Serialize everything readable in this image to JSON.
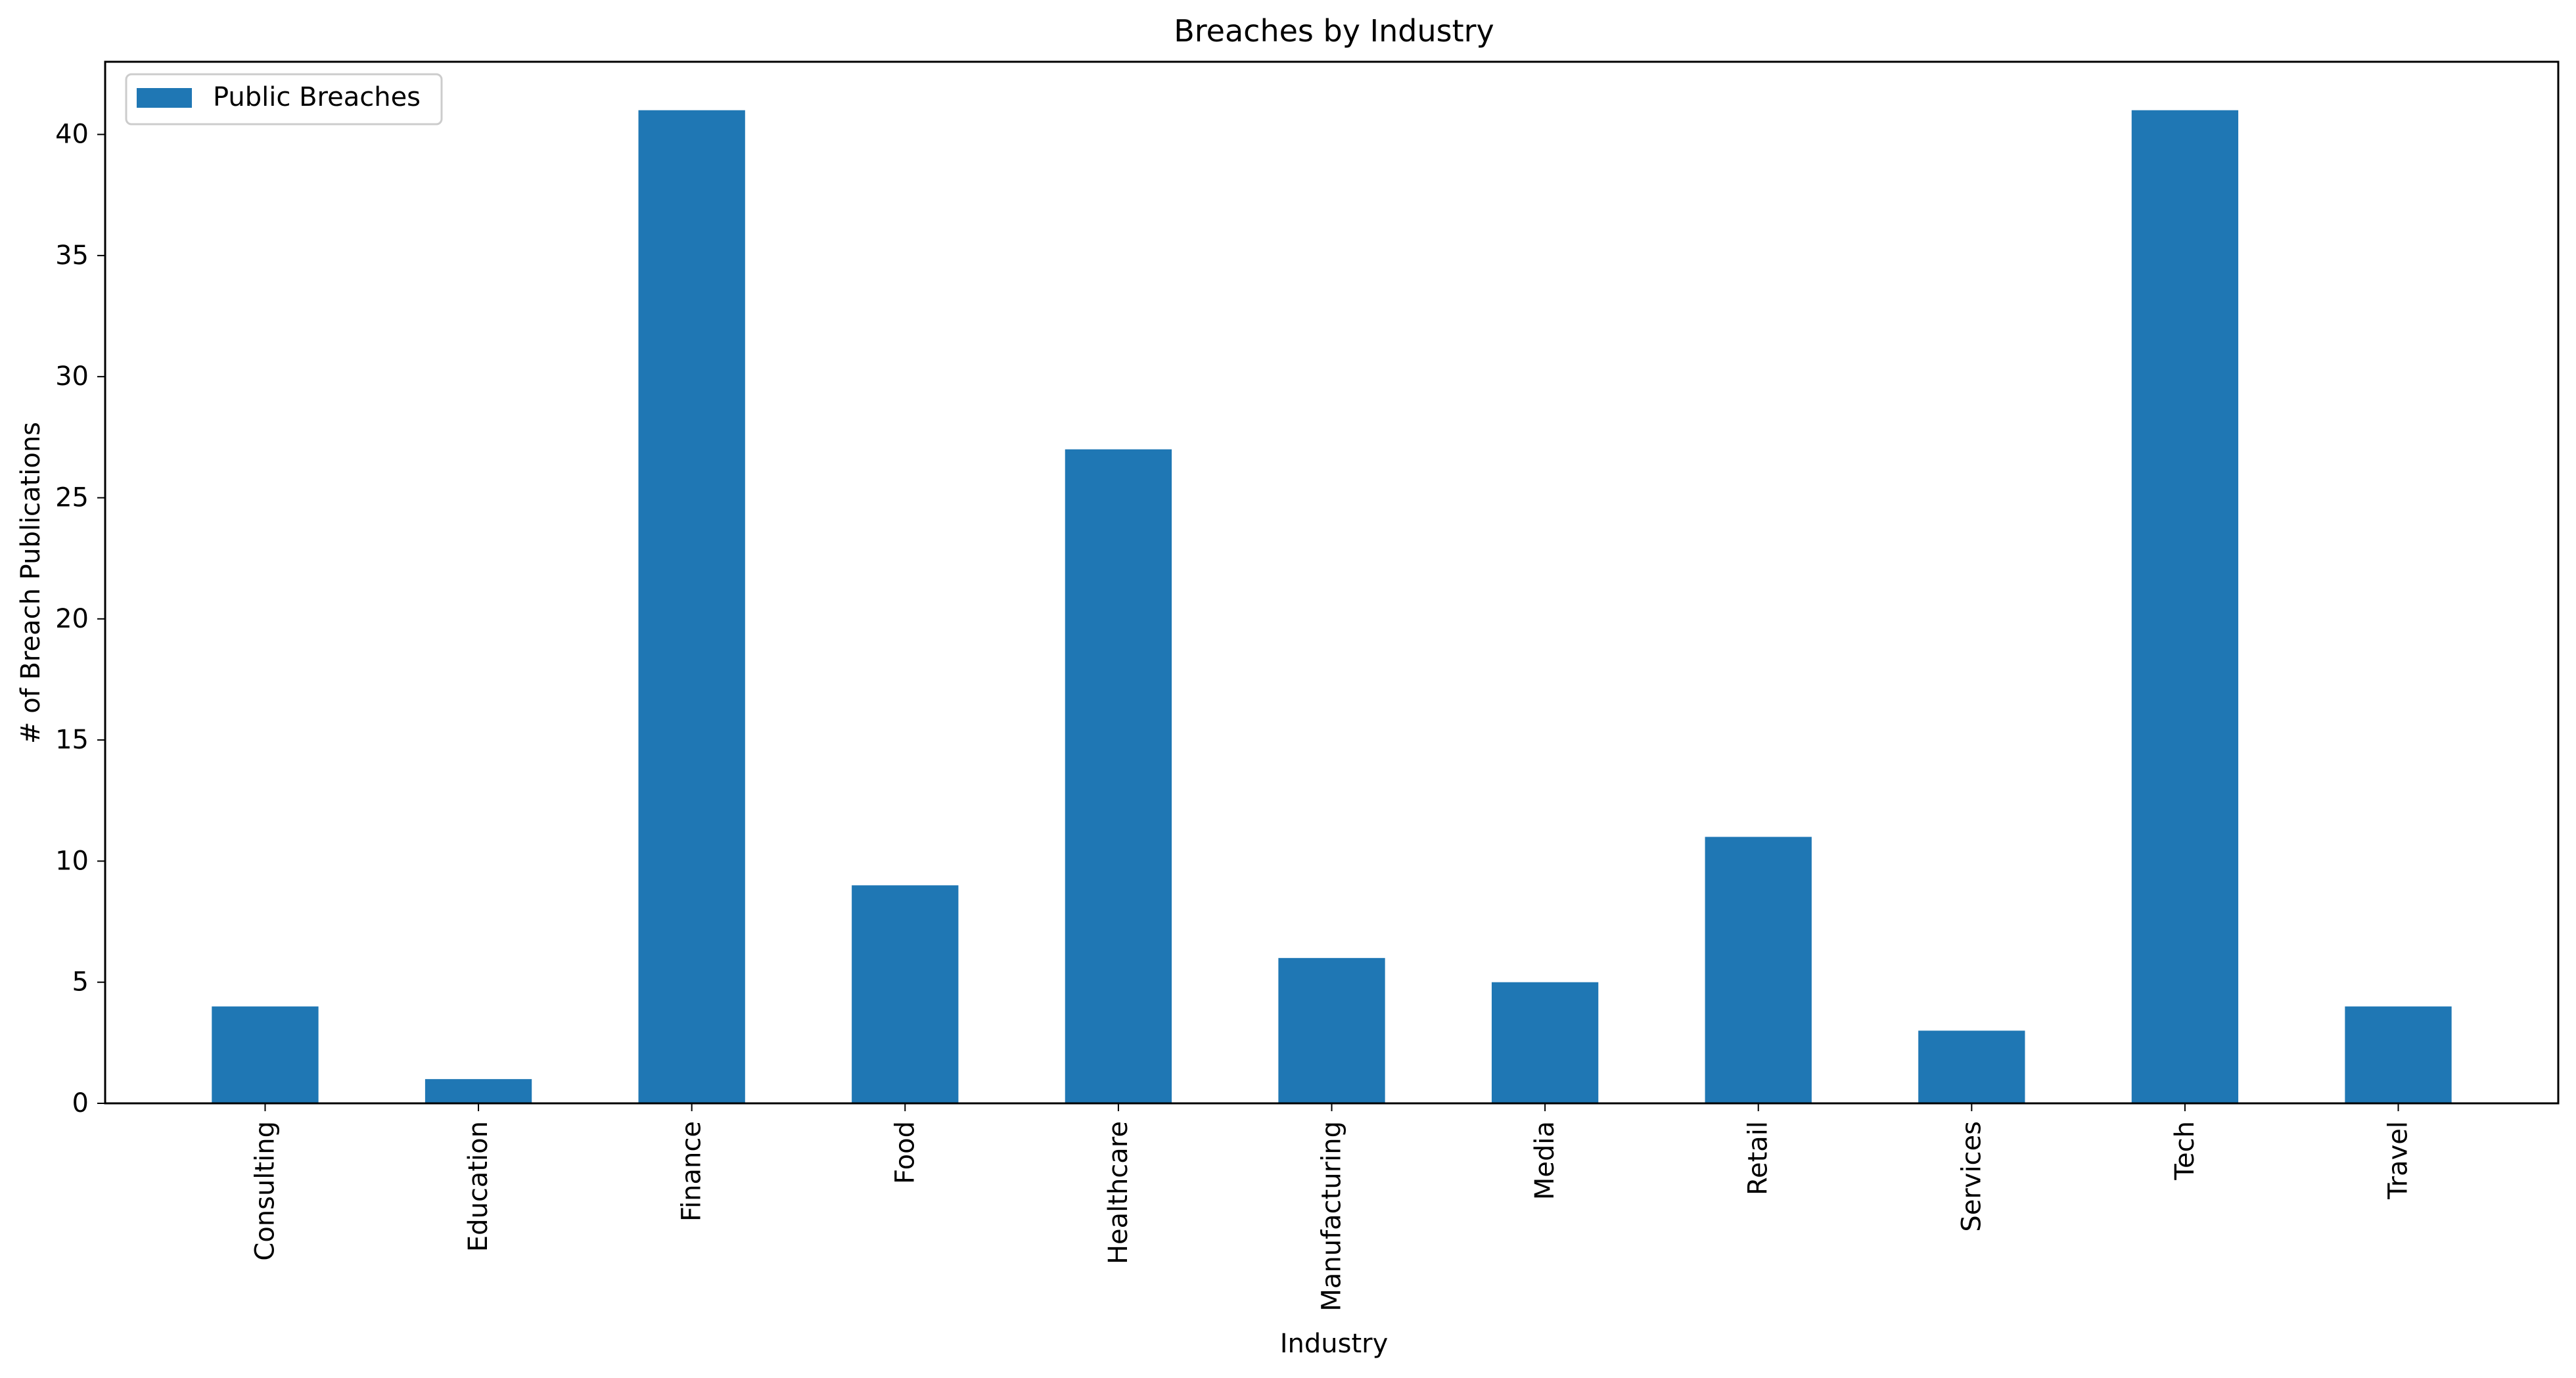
{
  "chart_data": {
    "type": "bar",
    "title": "Breaches by Industry",
    "xlabel": "Industry",
    "ylabel": "# of Breach Publications",
    "categories": [
      "Consulting",
      "Education",
      "Finance",
      "Food",
      "Healthcare",
      "Manufacturing",
      "Media",
      "Retail",
      "Services",
      "Tech",
      "Travel"
    ],
    "series": [
      {
        "name": "Public Breaches",
        "values": [
          4,
          1,
          41,
          9,
          27,
          6,
          5,
          11,
          3,
          41,
          4
        ],
        "color": "#1f77b4"
      }
    ],
    "ylim": [
      0,
      43
    ],
    "yticks": [
      0,
      5,
      10,
      15,
      20,
      25,
      30,
      35,
      40
    ],
    "legend_position": "top-left",
    "grid": false
  }
}
